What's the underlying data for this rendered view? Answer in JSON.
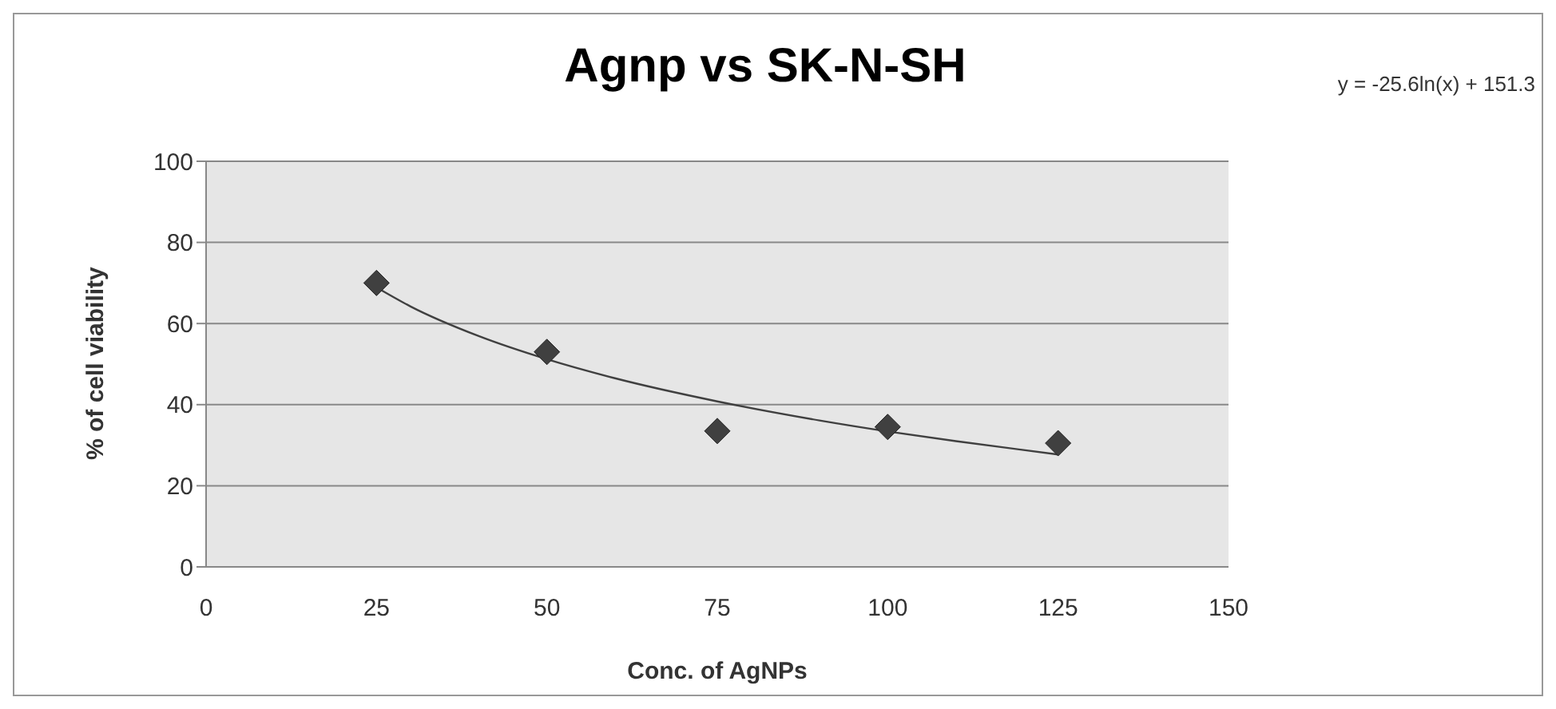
{
  "chart_data": {
    "type": "scatter",
    "title": "Agnp vs SK-N-SH",
    "xlabel": "Conc. of AgNPs",
    "ylabel": "% of cell viability",
    "annotations": [
      "y = -25.6ln(x) + 151.3"
    ],
    "x": [
      25,
      50,
      75,
      100,
      125
    ],
    "series": [
      {
        "color": "#404040",
        "marker": "diamond",
        "values": [
          70,
          53,
          33.5,
          34.5,
          30.5
        ]
      },
      {
        "type": "line",
        "color": "#404040",
        "marker": "none",
        "x": [
          25,
          30,
          40,
          50,
          60,
          75,
          90,
          100,
          110,
          125
        ],
        "values": [
          68.9,
          64.2,
          56.9,
          51.2,
          46.5,
          40.8,
          36.1,
          33.4,
          31.0,
          27.7
        ]
      }
    ],
    "xlim": [
      0,
      150
    ],
    "xticks": [
      0,
      25,
      50,
      75,
      100,
      125,
      150
    ],
    "ylim": [
      0,
      100
    ],
    "yticks": [
      0,
      20,
      40,
      60,
      80,
      100
    ],
    "grid": "y"
  }
}
